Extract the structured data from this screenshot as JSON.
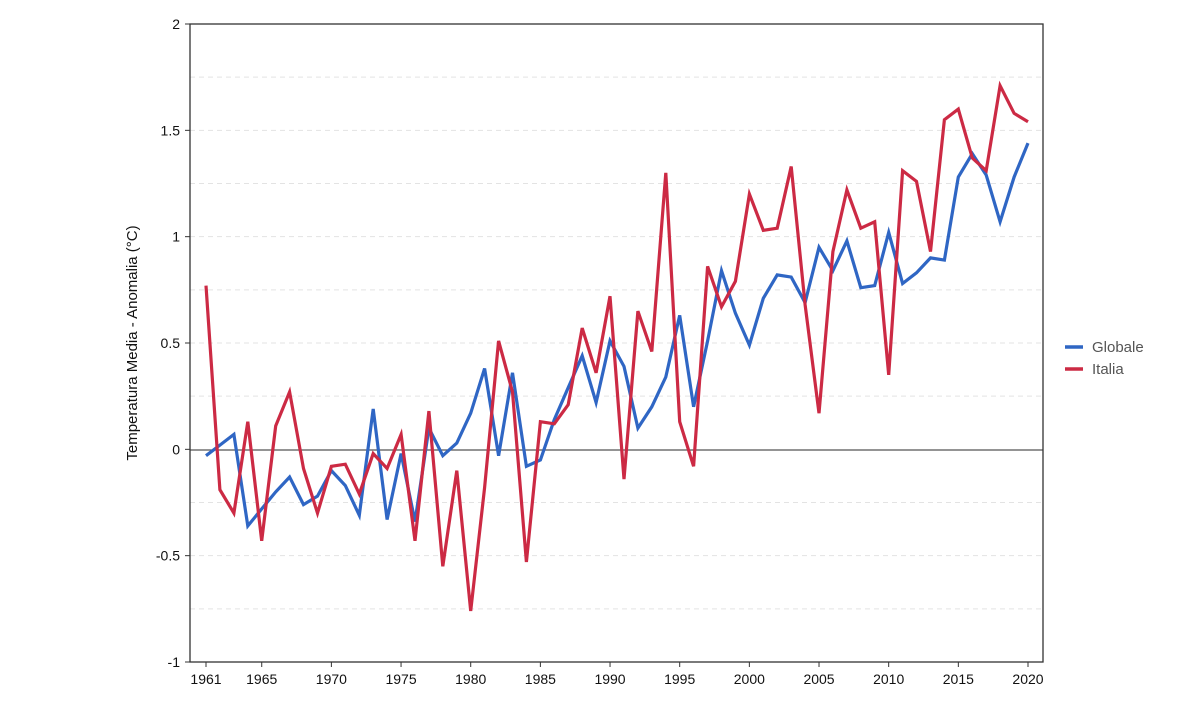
{
  "chart_data": {
    "type": "line",
    "title": "",
    "xlabel": "",
    "ylabel": "Temperatura Media - Anomalia (°C)",
    "xlim": [
      1961,
      2020
    ],
    "ylim": [
      -1,
      2
    ],
    "grid": true,
    "legend_position": "right",
    "x_ticks": [
      "1961",
      "1965",
      "1970",
      "1975",
      "1980",
      "1985",
      "1990",
      "1995",
      "2000",
      "2005",
      "2010",
      "2015",
      "2020"
    ],
    "y_ticks": [
      "-1",
      "-0.5",
      "0",
      "0.5",
      "1",
      "1.5",
      "2"
    ],
    "x": [
      1961,
      1962,
      1963,
      1964,
      1965,
      1966,
      1967,
      1968,
      1969,
      1970,
      1971,
      1972,
      1973,
      1974,
      1975,
      1976,
      1977,
      1978,
      1979,
      1980,
      1981,
      1982,
      1983,
      1984,
      1985,
      1986,
      1987,
      1988,
      1989,
      1990,
      1991,
      1992,
      1993,
      1994,
      1995,
      1996,
      1997,
      1998,
      1999,
      2000,
      2001,
      2002,
      2003,
      2004,
      2005,
      2006,
      2007,
      2008,
      2009,
      2010,
      2011,
      2012,
      2013,
      2014,
      2015,
      2016,
      2017,
      2018,
      2019,
      2020
    ],
    "series": [
      {
        "name": "Globale",
        "color": "#2f66c4",
        "values": [
          -0.03,
          0.02,
          0.07,
          -0.36,
          -0.28,
          -0.2,
          -0.13,
          -0.26,
          -0.22,
          -0.1,
          -0.17,
          -0.31,
          0.19,
          -0.33,
          -0.02,
          -0.34,
          0.1,
          -0.03,
          0.03,
          0.17,
          0.38,
          -0.03,
          0.36,
          -0.08,
          -0.05,
          0.14,
          0.29,
          0.44,
          0.22,
          0.51,
          0.39,
          0.1,
          0.2,
          0.34,
          0.63,
          0.2,
          0.51,
          0.84,
          0.64,
          0.49,
          0.71,
          0.82,
          0.81,
          0.69,
          0.95,
          0.84,
          0.98,
          0.76,
          0.77,
          1.02,
          0.78,
          0.83,
          0.9,
          0.89,
          1.28,
          1.39,
          1.29,
          1.07,
          1.28,
          1.44
        ]
      },
      {
        "name": "Italia",
        "color": "#cc2a44",
        "values": [
          0.77,
          -0.19,
          -0.3,
          0.13,
          -0.43,
          0.11,
          0.27,
          -0.09,
          -0.3,
          -0.08,
          -0.07,
          -0.21,
          -0.02,
          -0.09,
          0.07,
          -0.43,
          0.18,
          -0.55,
          -0.1,
          -0.76,
          -0.18,
          0.51,
          0.27,
          -0.53,
          0.13,
          0.12,
          0.21,
          0.57,
          0.36,
          0.72,
          -0.14,
          0.65,
          0.46,
          1.3,
          0.13,
          -0.08,
          0.86,
          0.67,
          0.79,
          1.2,
          1.03,
          1.04,
          1.33,
          0.68,
          0.17,
          0.93,
          1.22,
          1.04,
          1.07,
          0.35,
          1.31,
          1.26,
          0.93,
          1.55,
          1.6,
          1.37,
          1.31,
          1.71,
          1.58,
          1.54
        ]
      }
    ]
  }
}
